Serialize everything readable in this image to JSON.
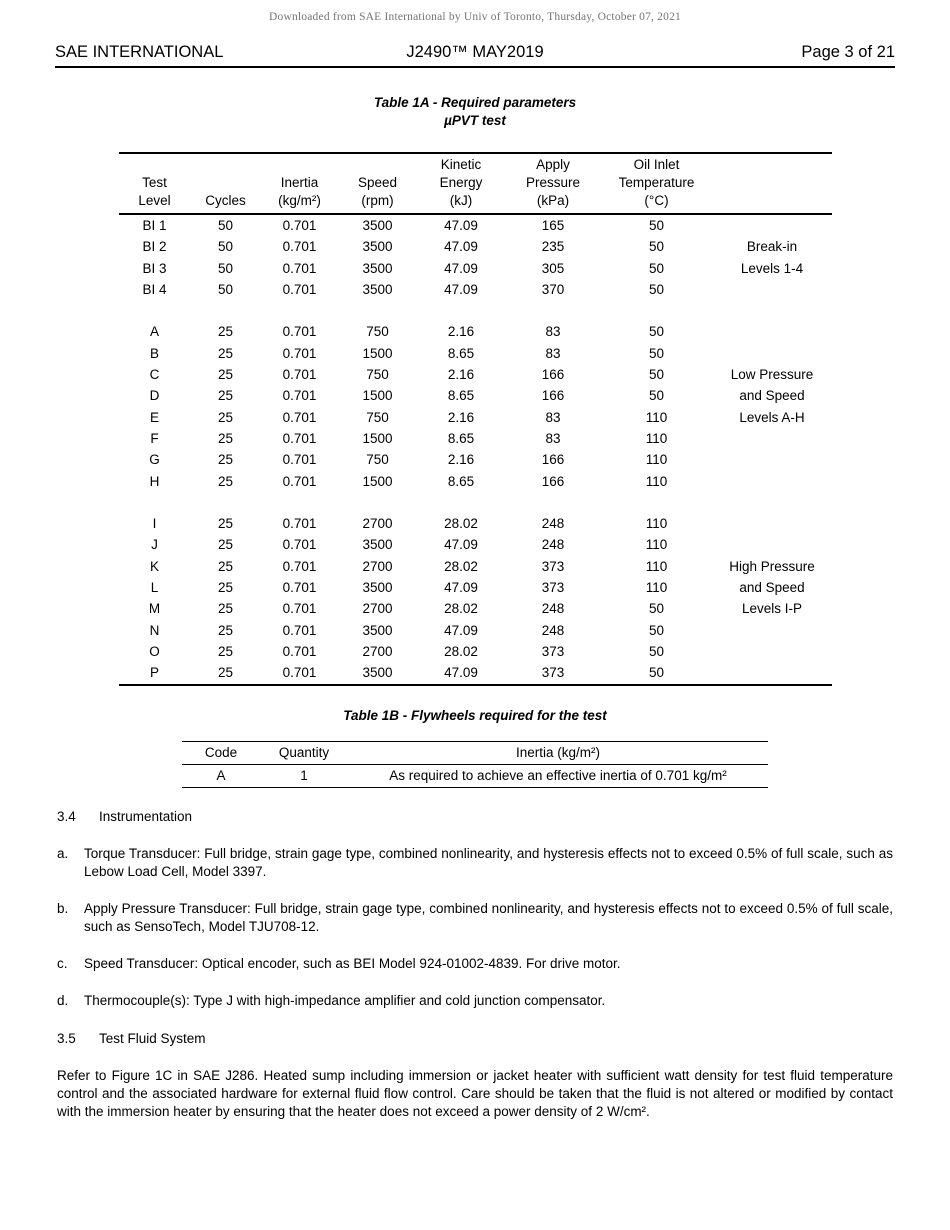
{
  "colors": {
    "text": "#000000",
    "watermark": "#757575",
    "rule": "#000000",
    "background": "#ffffff"
  },
  "watermark": "Downloaded from SAE International by Univ of Toronto, Thursday, October 07, 2021",
  "page_header": {
    "left": "SAE INTERNATIONAL",
    "center": "J2490™ MAY2019",
    "right": "Page 3 of 21"
  },
  "table_1a": {
    "title_line1": "Table 1A - Required parameters",
    "title_line2": "µPVT test",
    "column_headers": [
      "Test\nLevel",
      "Cycles",
      "Inertia\n(kg/m²)",
      "Speed\n(rpm)",
      "Kinetic\nEnergy\n(kJ)",
      "Apply\nPressure\n(kPa)",
      "Oil Inlet\nTemperature\n(°C)",
      ""
    ],
    "groups": [
      {
        "rows": [
          {
            "level": "BI 1",
            "cycles": "50",
            "inertia": "0.701",
            "speed": "3500",
            "energy": "47.09",
            "pressure": "165",
            "temp": "50",
            "note": ""
          },
          {
            "level": "BI 2",
            "cycles": "50",
            "inertia": "0.701",
            "speed": "3500",
            "energy": "47.09",
            "pressure": "235",
            "temp": "50",
            "note": "Break-in"
          },
          {
            "level": "BI 3",
            "cycles": "50",
            "inertia": "0.701",
            "speed": "3500",
            "energy": "47.09",
            "pressure": "305",
            "temp": "50",
            "note": "Levels 1-4"
          },
          {
            "level": "BI 4",
            "cycles": "50",
            "inertia": "0.701",
            "speed": "3500",
            "energy": "47.09",
            "pressure": "370",
            "temp": "50",
            "note": ""
          }
        ]
      },
      {
        "rows": [
          {
            "level": "A",
            "cycles": "25",
            "inertia": "0.701",
            "speed": "750",
            "energy": "2.16",
            "pressure": "83",
            "temp": "50",
            "note": ""
          },
          {
            "level": "B",
            "cycles": "25",
            "inertia": "0.701",
            "speed": "1500",
            "energy": "8.65",
            "pressure": "83",
            "temp": "50",
            "note": ""
          },
          {
            "level": "C",
            "cycles": "25",
            "inertia": "0.701",
            "speed": "750",
            "energy": "2.16",
            "pressure": "166",
            "temp": "50",
            "note": "Low Pressure"
          },
          {
            "level": "D",
            "cycles": "25",
            "inertia": "0.701",
            "speed": "1500",
            "energy": "8.65",
            "pressure": "166",
            "temp": "50",
            "note": "and Speed"
          },
          {
            "level": "E",
            "cycles": "25",
            "inertia": "0.701",
            "speed": "750",
            "energy": "2.16",
            "pressure": "83",
            "temp": "110",
            "note": "Levels A-H"
          },
          {
            "level": "F",
            "cycles": "25",
            "inertia": "0.701",
            "speed": "1500",
            "energy": "8.65",
            "pressure": "83",
            "temp": "110",
            "note": ""
          },
          {
            "level": "G",
            "cycles": "25",
            "inertia": "0.701",
            "speed": "750",
            "energy": "2.16",
            "pressure": "166",
            "temp": "110",
            "note": ""
          },
          {
            "level": "H",
            "cycles": "25",
            "inertia": "0.701",
            "speed": "1500",
            "energy": "8.65",
            "pressure": "166",
            "temp": "110",
            "note": ""
          }
        ]
      },
      {
        "rows": [
          {
            "level": "I",
            "cycles": "25",
            "inertia": "0.701",
            "speed": "2700",
            "energy": "28.02",
            "pressure": "248",
            "temp": "110",
            "note": ""
          },
          {
            "level": "J",
            "cycles": "25",
            "inertia": "0.701",
            "speed": "3500",
            "energy": "47.09",
            "pressure": "248",
            "temp": "110",
            "note": ""
          },
          {
            "level": "K",
            "cycles": "25",
            "inertia": "0.701",
            "speed": "2700",
            "energy": "28.02",
            "pressure": "373",
            "temp": "110",
            "note": "High Pressure"
          },
          {
            "level": "L",
            "cycles": "25",
            "inertia": "0.701",
            "speed": "3500",
            "energy": "47.09",
            "pressure": "373",
            "temp": "110",
            "note": "and Speed"
          },
          {
            "level": "M",
            "cycles": "25",
            "inertia": "0.701",
            "speed": "2700",
            "energy": "28.02",
            "pressure": "248",
            "temp": "50",
            "note": "Levels I-P"
          },
          {
            "level": "N",
            "cycles": "25",
            "inertia": "0.701",
            "speed": "3500",
            "energy": "47.09",
            "pressure": "248",
            "temp": "50",
            "note": ""
          },
          {
            "level": "O",
            "cycles": "25",
            "inertia": "0.701",
            "speed": "2700",
            "energy": "28.02",
            "pressure": "373",
            "temp": "50",
            "note": ""
          },
          {
            "level": "P",
            "cycles": "25",
            "inertia": "0.701",
            "speed": "3500",
            "energy": "47.09",
            "pressure": "373",
            "temp": "50",
            "note": ""
          }
        ]
      }
    ]
  },
  "table_1b": {
    "title": "Table 1B - Flywheels required for the test",
    "headers": [
      "Code",
      "Quantity",
      "Inertia (kg/m²)"
    ],
    "row": [
      "A",
      "1",
      "As required to achieve an effective inertia of 0.701 kg/m²"
    ]
  },
  "section_34": {
    "number": "3.4",
    "title": "Instrumentation"
  },
  "instrumentation_items": [
    {
      "label": "a.",
      "text": "Torque Transducer: Full bridge, strain gage type, combined nonlinearity, and hysteresis effects not to exceed 0.5% of full scale, such as Lebow Load Cell, Model 3397."
    },
    {
      "label": "b.",
      "text": "Apply Pressure Transducer: Full bridge, strain gage type, combined nonlinearity, and hysteresis effects not to exceed 0.5% of full scale, such as SensoTech, Model TJU708-12."
    },
    {
      "label": "c.",
      "text": "Speed Transducer: Optical encoder, such as BEI Model 924-01002-4839. For drive motor."
    },
    {
      "label": "d.",
      "text": "Thermocouple(s): Type J with high-impedance amplifier and cold junction compensator."
    }
  ],
  "section_35": {
    "number": "3.5",
    "title": "Test Fluid System"
  },
  "fluid_paragraph": "Refer to Figure 1C in SAE J286. Heated sump including immersion or jacket heater with sufficient watt density for test fluid temperature control and the associated hardware for external fluid flow control. Care should be taken that the fluid is not altered or modified by contact with the immersion heater by ensuring that the heater does not exceed a power density of 2 W/cm²."
}
